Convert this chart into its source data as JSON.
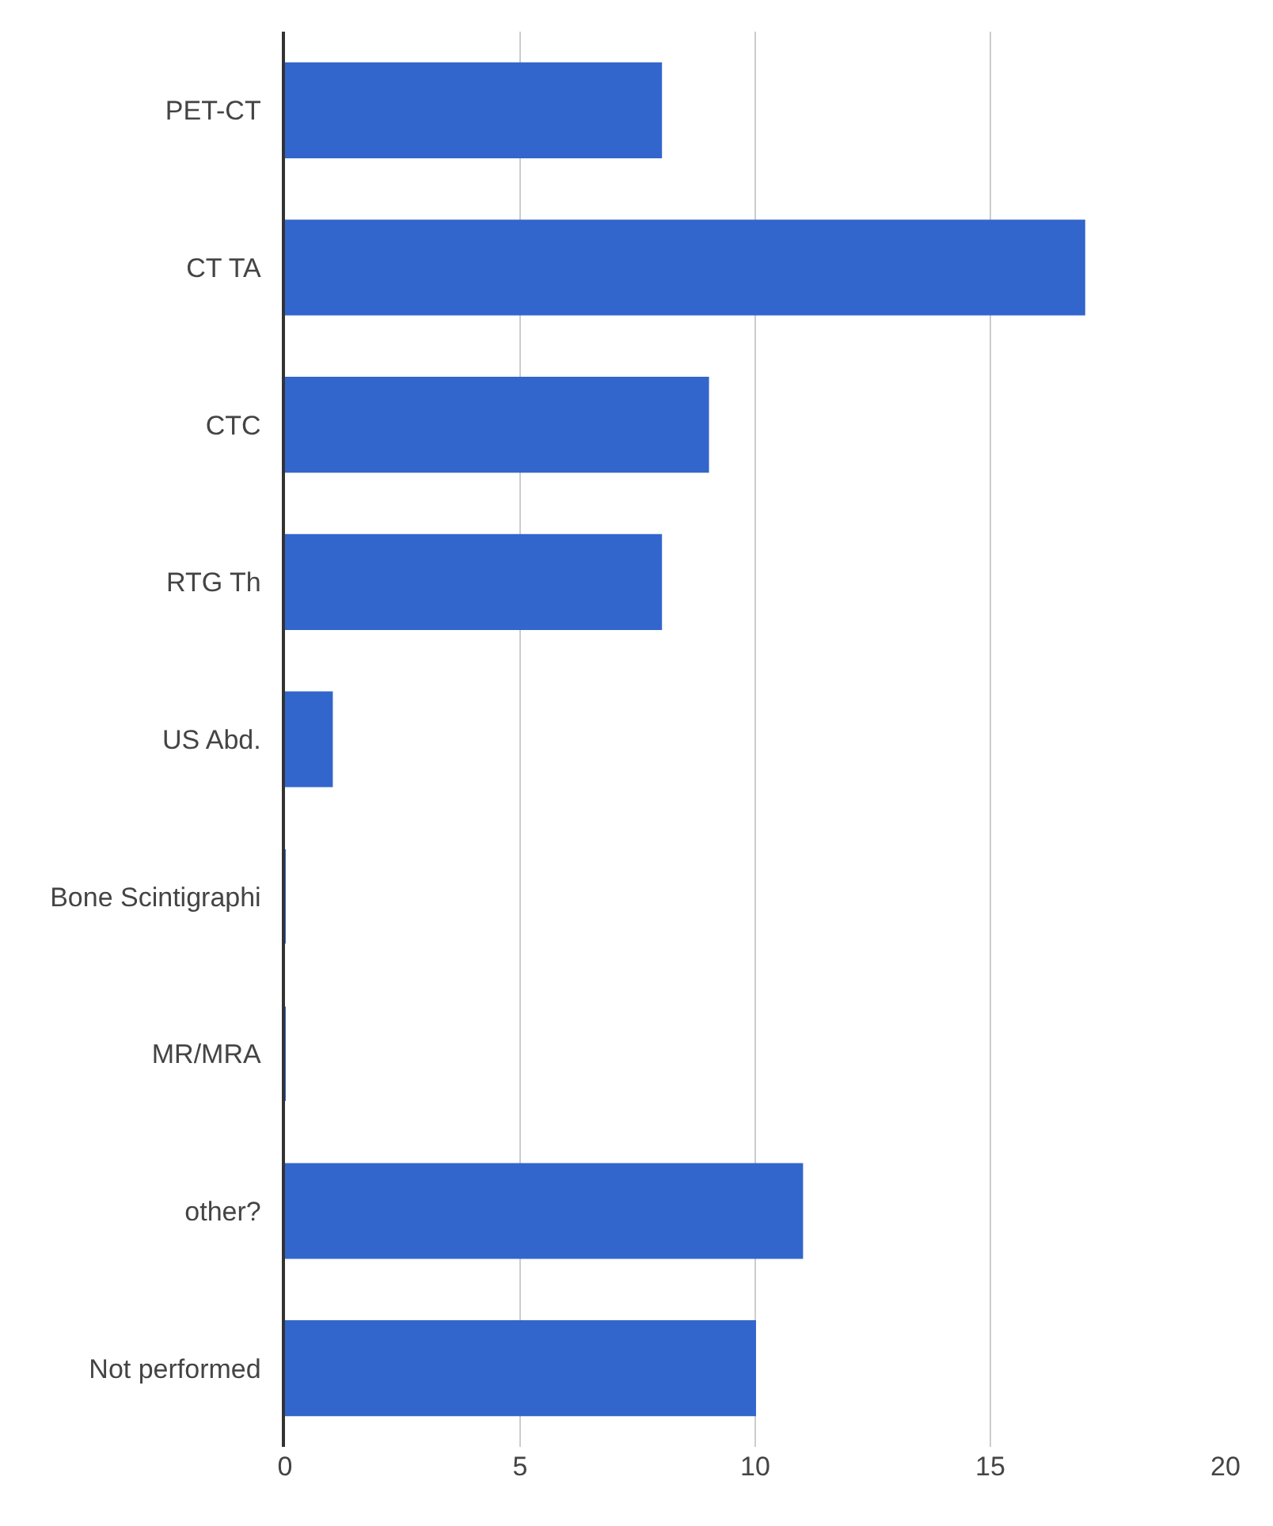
{
  "chart_data": {
    "type": "bar",
    "orientation": "horizontal",
    "categories": [
      "PET-CT",
      "CT TA",
      "CTC",
      "RTG Th",
      "US Abd.",
      "Bone Scintigraphi",
      "MR/MRA",
      "other?",
      "Not performed"
    ],
    "values": [
      8,
      17,
      9,
      8,
      1,
      0,
      0,
      11,
      10
    ],
    "color": "#3366cc",
    "xlim": [
      0,
      20
    ],
    "xticks": [
      0,
      5,
      10,
      15,
      20
    ],
    "grid": "x",
    "legend": false
  }
}
